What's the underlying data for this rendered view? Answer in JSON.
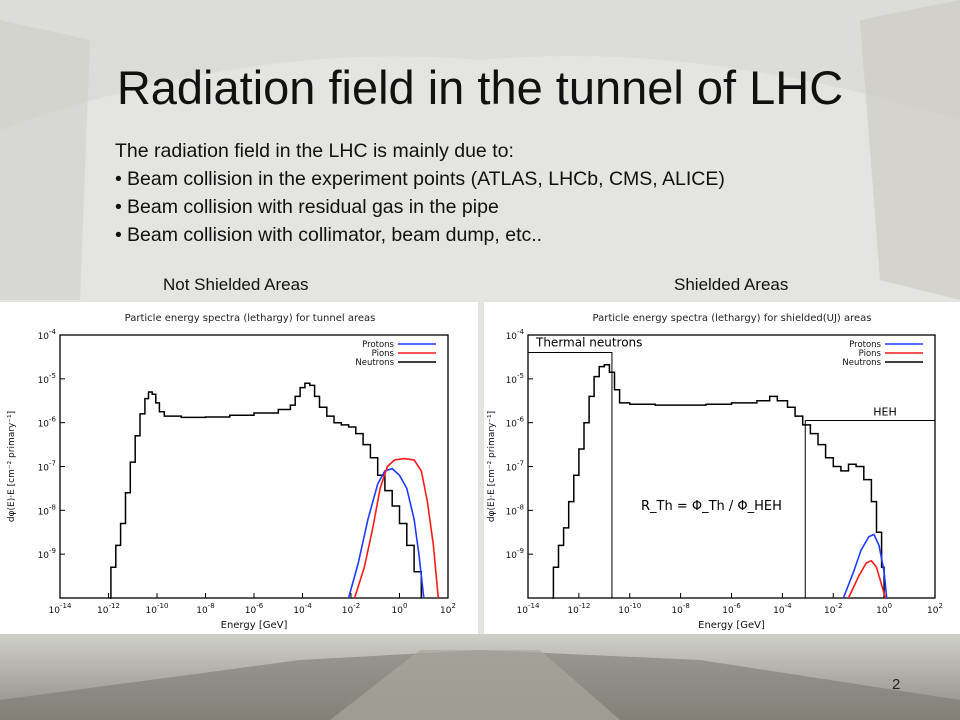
{
  "slide": {
    "title": "Radiation field in the tunnel of LHC",
    "intro": "The radiation field in the LHC is mainly due to:",
    "bullets": [
      "Beam collision in the experiment points (ATLAS, LHCb, CMS, ALICE)",
      "Beam collision with residual gas in the pipe",
      "Beam collision with collimator, beam dump, etc.."
    ],
    "left_label": "Not Shielded Areas",
    "right_label": "Shielded Areas",
    "page_number": "2"
  },
  "series_colors": {
    "Protons": "#1f3bff",
    "Pions": "#ff1a1a",
    "Neutrons": "#000000"
  },
  "chart_data": [
    {
      "type": "line",
      "title": "Particle energy spectra (lethargy) for tunnel areas",
      "xlabel": "Energy [GeV]",
      "ylabel": "dφ(E)·E [cm⁻² primary⁻¹]",
      "xscale": "log",
      "yscale": "log",
      "xlim_exp": [
        -14,
        2
      ],
      "ylim_exp": [
        -10,
        -4
      ],
      "xtick_exps": [
        -14,
        -12,
        -10,
        -8,
        -6,
        -4,
        -2,
        0,
        2
      ],
      "ytick_exps": [
        -9,
        -8,
        -7,
        -6,
        -5,
        -4
      ],
      "legend": {
        "placement": "top-right",
        "entries": [
          "Protons",
          "Pions",
          "Neutrons"
        ]
      },
      "series": [
        {
          "name": "Neutrons",
          "step": true,
          "points": [
            [
              -11.95,
              -10
            ],
            [
              -11.9,
              -9.3
            ],
            [
              -11.7,
              -8.8
            ],
            [
              -11.5,
              -8.3
            ],
            [
              -11.3,
              -7.6
            ],
            [
              -11.1,
              -6.9
            ],
            [
              -10.9,
              -6.3
            ],
            [
              -10.7,
              -5.8
            ],
            [
              -10.5,
              -5.45
            ],
            [
              -10.35,
              -5.3
            ],
            [
              -10.2,
              -5.35
            ],
            [
              -10.05,
              -5.55
            ],
            [
              -9.9,
              -5.75
            ],
            [
              -9.7,
              -5.85
            ],
            [
              -9.0,
              -5.88
            ],
            [
              -8.0,
              -5.87
            ],
            [
              -7.0,
              -5.83
            ],
            [
              -6.0,
              -5.78
            ],
            [
              -5.0,
              -5.7
            ],
            [
              -4.5,
              -5.6
            ],
            [
              -4.3,
              -5.4
            ],
            [
              -4.1,
              -5.2
            ],
            [
              -3.9,
              -5.1
            ],
            [
              -3.7,
              -5.15
            ],
            [
              -3.5,
              -5.4
            ],
            [
              -3.3,
              -5.65
            ],
            [
              -3.0,
              -5.85
            ],
            [
              -2.7,
              -6.0
            ],
            [
              -2.4,
              -6.05
            ],
            [
              -2.1,
              -6.1
            ],
            [
              -1.8,
              -6.25
            ],
            [
              -1.5,
              -6.5
            ],
            [
              -1.2,
              -6.8
            ],
            [
              -0.9,
              -7.2
            ],
            [
              -0.6,
              -7.55
            ],
            [
              -0.3,
              -7.9
            ],
            [
              0.0,
              -8.3
            ],
            [
              0.3,
              -8.8
            ],
            [
              0.6,
              -9.4
            ],
            [
              0.9,
              -10
            ]
          ]
        },
        {
          "name": "Protons",
          "step": false,
          "points": [
            [
              -2.1,
              -10
            ],
            [
              -1.7,
              -9.2
            ],
            [
              -1.3,
              -8.2
            ],
            [
              -0.9,
              -7.4
            ],
            [
              -0.6,
              -7.1
            ],
            [
              -0.3,
              -7.05
            ],
            [
              0.0,
              -7.2
            ],
            [
              0.3,
              -7.5
            ],
            [
              0.6,
              -8.2
            ],
            [
              0.8,
              -9
            ],
            [
              1.0,
              -10
            ]
          ]
        },
        {
          "name": "Pions",
          "step": false,
          "points": [
            [
              -1.85,
              -10
            ],
            [
              -1.45,
              -9.3
            ],
            [
              -1.1,
              -8.4
            ],
            [
              -0.8,
              -7.5
            ],
            [
              -0.5,
              -7.0
            ],
            [
              -0.2,
              -6.85
            ],
            [
              0.2,
              -6.82
            ],
            [
              0.6,
              -6.85
            ],
            [
              0.9,
              -7.1
            ],
            [
              1.15,
              -7.8
            ],
            [
              1.4,
              -8.8
            ],
            [
              1.6,
              -10
            ]
          ]
        }
      ]
    },
    {
      "type": "line",
      "title": "Particle energy spectra (lethargy) for shielded(UJ) areas",
      "xlabel": "Energy [GeV]",
      "ylabel": "dφ(E)·E [cm⁻² primary⁻¹]",
      "xscale": "log",
      "yscale": "log",
      "xlim_exp": [
        -14,
        2
      ],
      "ylim_exp": [
        -10,
        -4
      ],
      "xtick_exps": [
        -14,
        -12,
        -10,
        -8,
        -6,
        -4,
        -2,
        0,
        2
      ],
      "ytick_exps": [
        -9,
        -8,
        -7,
        -6,
        -5,
        -4
      ],
      "legend": {
        "placement": "top-right",
        "entries": [
          "Protons",
          "Pions",
          "Neutrons"
        ]
      },
      "annotations": [
        {
          "text": "Thermal neutrons",
          "x_exp_from": -14,
          "x_exp_to": -10.7,
          "y_exp": -4.4
        },
        {
          "text": "HEH",
          "x_exp_from": -3.1,
          "x_exp_to": 2,
          "y_exp": -5.95
        },
        {
          "text": "R_Th = Φ_Th / Φ_HEH"
        }
      ],
      "series": [
        {
          "name": "Neutrons",
          "step": true,
          "points": [
            [
              -13.05,
              -10
            ],
            [
              -13.0,
              -9.3
            ],
            [
              -12.8,
              -8.8
            ],
            [
              -12.6,
              -8.4
            ],
            [
              -12.4,
              -7.8
            ],
            [
              -12.2,
              -7.2
            ],
            [
              -12.0,
              -6.6
            ],
            [
              -11.8,
              -6.0
            ],
            [
              -11.6,
              -5.4
            ],
            [
              -11.4,
              -4.95
            ],
            [
              -11.2,
              -4.72
            ],
            [
              -11.0,
              -4.68
            ],
            [
              -10.8,
              -4.85
            ],
            [
              -10.6,
              -5.25
            ],
            [
              -10.4,
              -5.55
            ],
            [
              -10.0,
              -5.58
            ],
            [
              -9.0,
              -5.6
            ],
            [
              -8.0,
              -5.6
            ],
            [
              -7.0,
              -5.58
            ],
            [
              -6.0,
              -5.55
            ],
            [
              -5.0,
              -5.5
            ],
            [
              -4.5,
              -5.4
            ],
            [
              -4.2,
              -5.5
            ],
            [
              -3.8,
              -5.65
            ],
            [
              -3.5,
              -5.85
            ],
            [
              -3.2,
              -6.05
            ],
            [
              -2.9,
              -6.25
            ],
            [
              -2.6,
              -6.5
            ],
            [
              -2.3,
              -6.8
            ],
            [
              -2.0,
              -7.0
            ],
            [
              -1.7,
              -7.1
            ],
            [
              -1.4,
              -6.95
            ],
            [
              -1.1,
              -7.0
            ],
            [
              -0.8,
              -7.3
            ],
            [
              -0.5,
              -7.8
            ],
            [
              -0.3,
              -8.5
            ],
            [
              -0.1,
              -9.3
            ],
            [
              0.0,
              -10
            ]
          ]
        },
        {
          "name": "Protons",
          "step": false,
          "points": [
            [
              -1.6,
              -10
            ],
            [
              -1.2,
              -9.4
            ],
            [
              -0.9,
              -8.9
            ],
            [
              -0.6,
              -8.6
            ],
            [
              -0.4,
              -8.55
            ],
            [
              -0.2,
              -8.8
            ],
            [
              0.0,
              -9.4
            ],
            [
              0.1,
              -10
            ]
          ]
        },
        {
          "name": "Pions",
          "step": false,
          "points": [
            [
              -1.4,
              -10
            ],
            [
              -1.0,
              -9.5
            ],
            [
              -0.7,
              -9.2
            ],
            [
              -0.5,
              -9.15
            ],
            [
              -0.3,
              -9.3
            ],
            [
              -0.1,
              -9.7
            ],
            [
              0.05,
              -10
            ]
          ]
        }
      ]
    }
  ]
}
